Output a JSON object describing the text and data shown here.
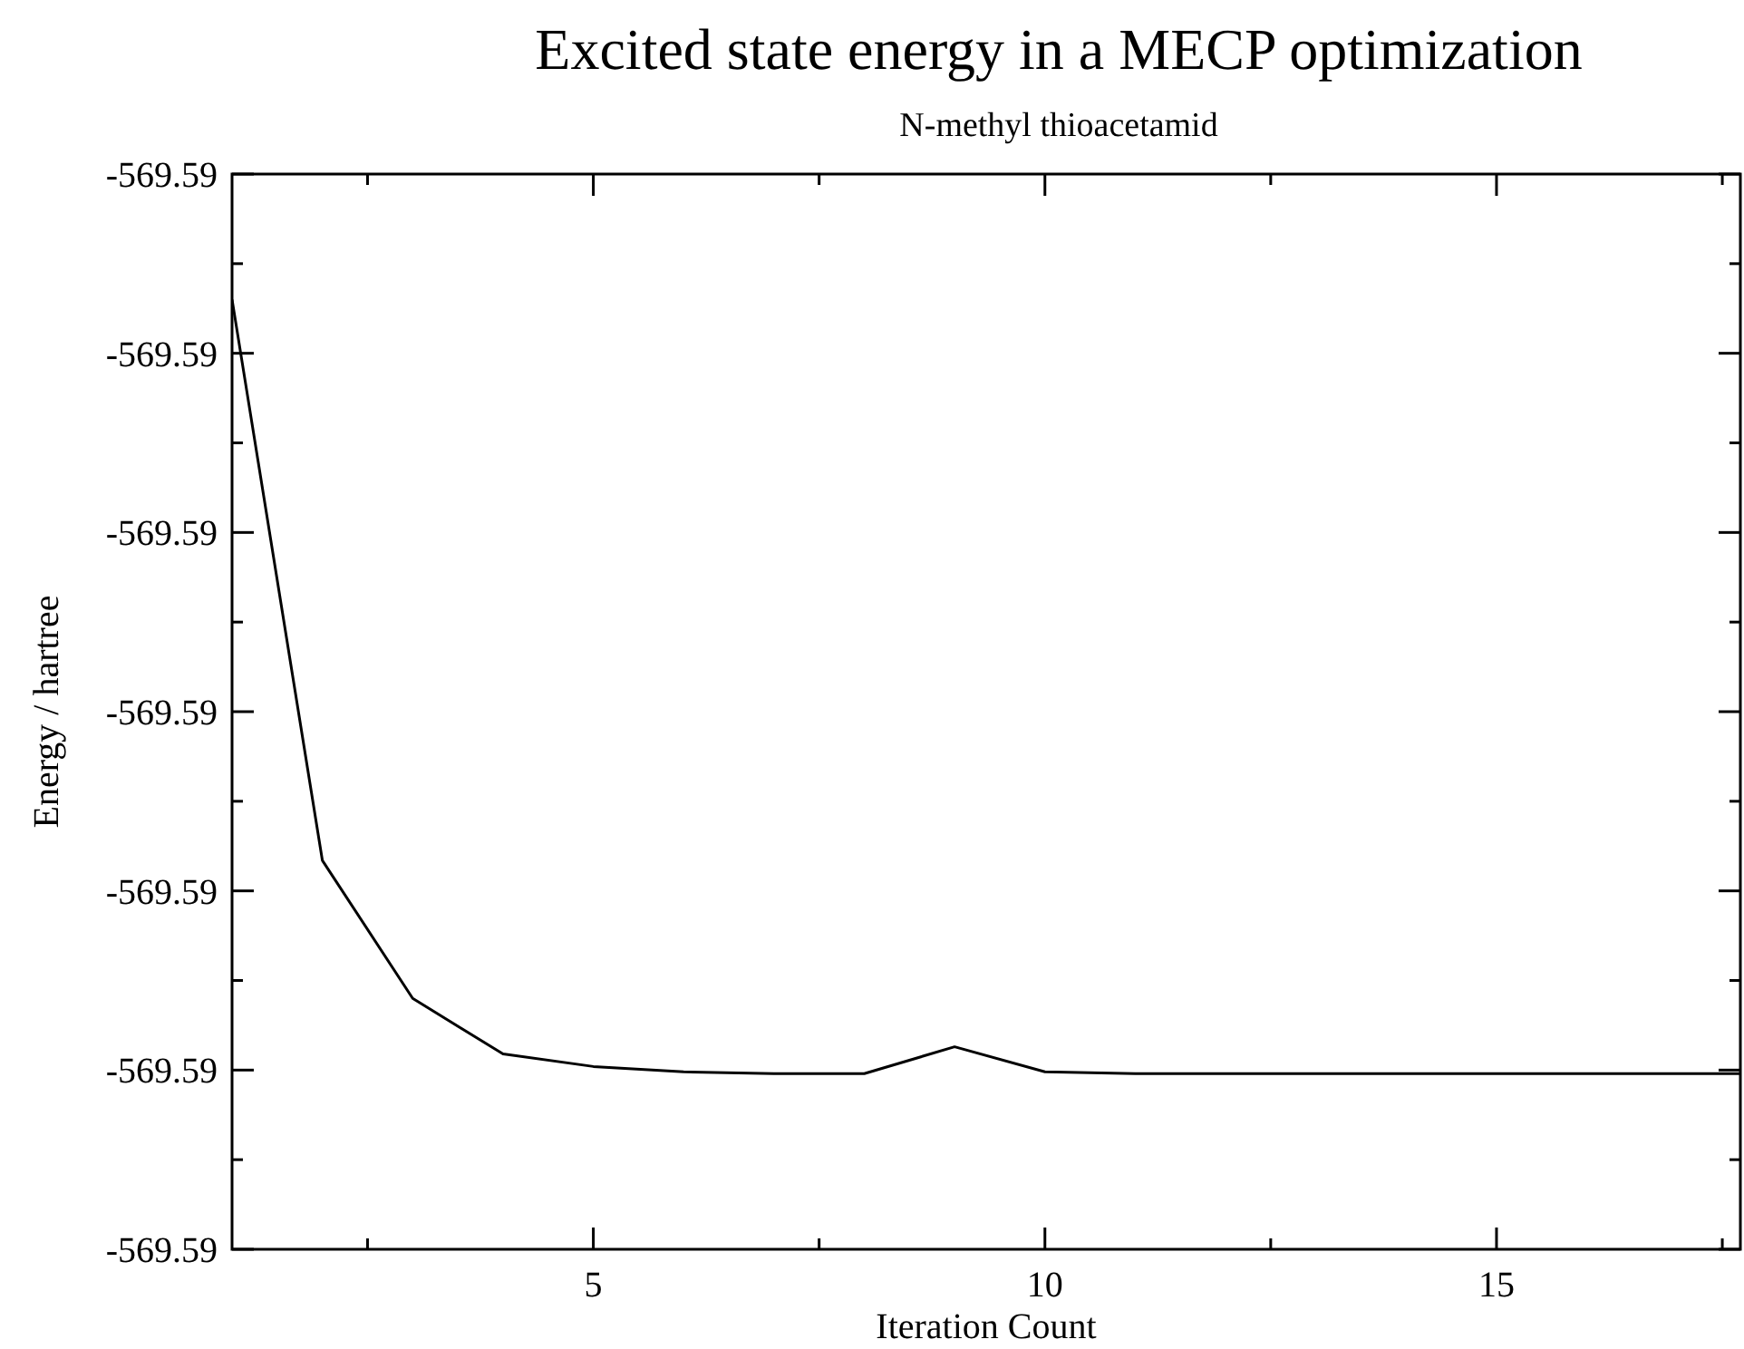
{
  "chart_data": {
    "type": "line",
    "title": "Excited state energy in a MECP optimization",
    "subtitle": "N-methyl thioacetamid",
    "xlabel": "Iteration Count",
    "ylabel": "Energy / hartree",
    "x": [
      1,
      2,
      3,
      4,
      5,
      6,
      7,
      8,
      9,
      10,
      11,
      12,
      13,
      14,
      15,
      16,
      17,
      17.7
    ],
    "series": [
      {
        "color": "#000000",
        "values": [
          -569.5887,
          -569.59183,
          -569.5926,
          -569.59291,
          -569.59298,
          -569.59301,
          -569.59302,
          -569.59302,
          -569.59287,
          -569.59301,
          -569.59302,
          -569.59302,
          -569.59302,
          -569.59302,
          -569.59302,
          -569.59302,
          -569.59302,
          -569.59302
        ]
      }
    ],
    "xlim": [
      1,
      17.7
    ],
    "xticks": [
      {
        "value": 2.5,
        "label": null
      },
      5,
      {
        "value": 7.5,
        "label": null
      },
      10,
      {
        "value": 12.5,
        "label": null
      },
      15,
      {
        "value": 17.5,
        "label": null
      }
    ],
    "ylim": [
      -569.594,
      -569.588
    ],
    "yticks": [
      {
        "value": -569.594,
        "label": "-569.59"
      },
      {
        "value": -569.5935,
        "label": null
      },
      {
        "value": -569.593,
        "label": "-569.59"
      },
      {
        "value": -569.5925,
        "label": null
      },
      {
        "value": -569.592,
        "label": "-569.59"
      },
      {
        "value": -569.5915,
        "label": null
      },
      {
        "value": -569.591,
        "label": "-569.59"
      },
      {
        "value": -569.5905,
        "label": null
      },
      {
        "value": -569.59,
        "label": "-569.59"
      },
      {
        "value": -569.5895,
        "label": null
      },
      {
        "value": -569.589,
        "label": "-569.59"
      },
      {
        "value": -569.5885,
        "label": null
      },
      {
        "value": -569.588,
        "label": "-569.59"
      }
    ],
    "marker": "none",
    "line_style": "solid"
  }
}
